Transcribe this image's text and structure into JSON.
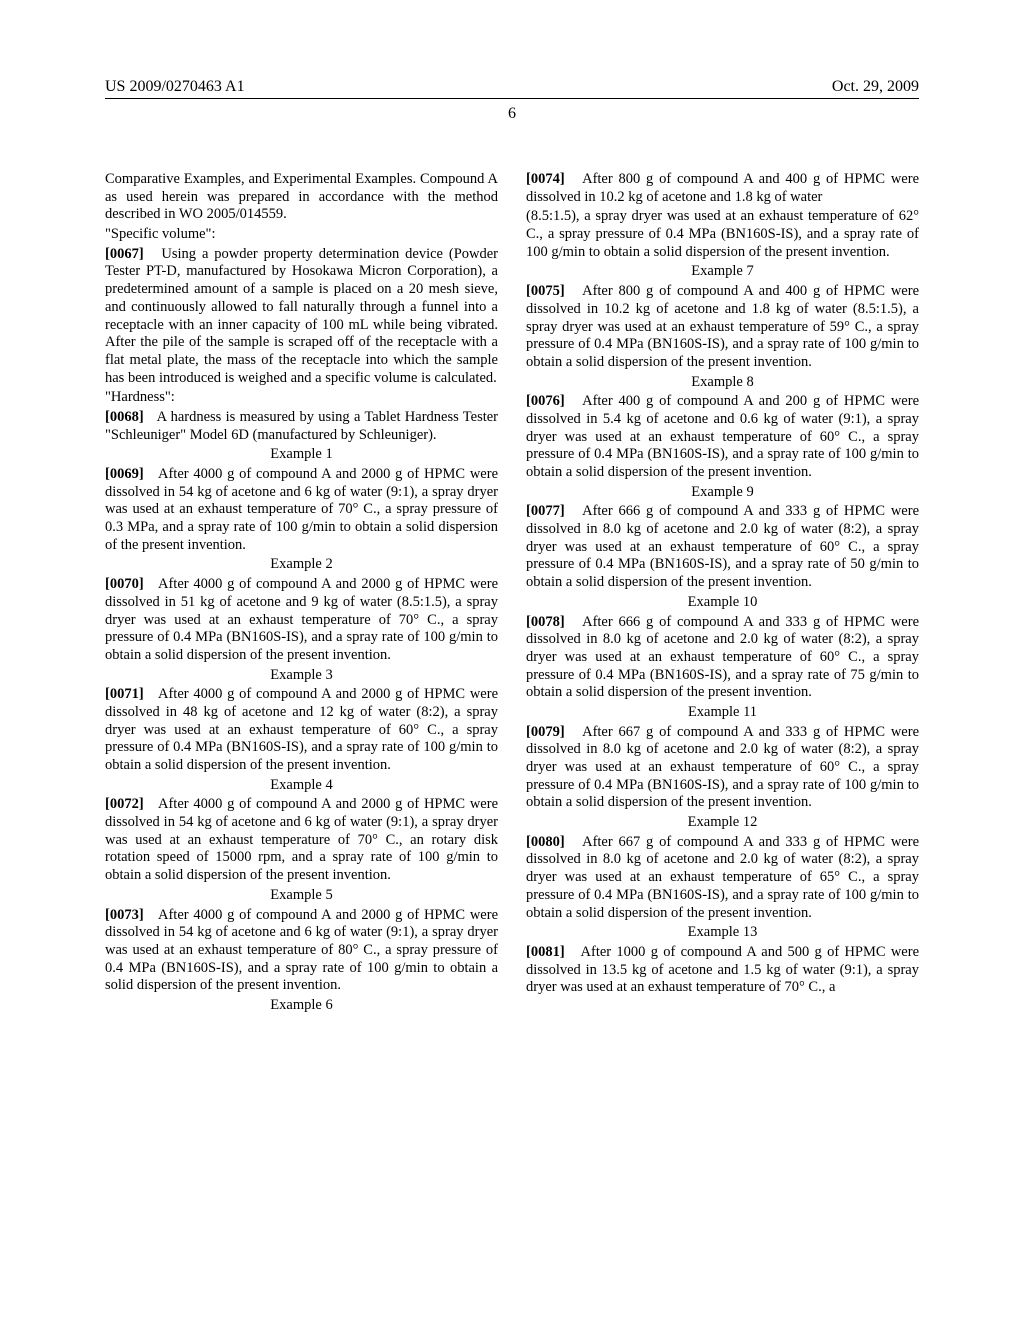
{
  "header": {
    "left": "US 2009/0270463 A1",
    "right": "Oct. 29, 2009"
  },
  "page_number": "6",
  "col1": {
    "intro1": "Comparative Examples, and Experimental Examples. Compound A as used herein was prepared in accordance with the method described in WO 2005/014559.",
    "specific_volume_label": "\"Specific volume\":",
    "p0067_num": "[0067]",
    "p0067": "Using a powder property determination device (Powder Tester PT-D, manufactured by Hosokawa Micron Corporation), a predetermined amount of a sample is placed on a 20 mesh sieve, and continuously allowed to fall naturally through a funnel into a receptacle with an inner capacity of 100 mL while being vibrated. After the pile of the sample is scraped off of the receptacle with a flat metal plate, the mass of the receptacle into which the sample has been introduced is weighed and a specific volume is calculated.",
    "hardness_label": "\"Hardness\":",
    "p0068_num": "[0068]",
    "p0068": "A hardness is measured by using a Tablet Hardness Tester \"Schleuniger\" Model 6D (manufactured by Schleuniger).",
    "ex1_heading": "Example 1",
    "p0069_num": "[0069]",
    "p0069": "After 4000 g of compound A and 2000 g of HPMC were dissolved in 54 kg of acetone and 6 kg of water (9:1), a spray dryer was used at an exhaust temperature of 70° C., a spray pressure of 0.3 MPa, and a spray rate of 100 g/min to obtain a solid dispersion of the present invention.",
    "ex2_heading": "Example 2",
    "p0070_num": "[0070]",
    "p0070": "After 4000 g of compound A and 2000 g of HPMC were dissolved in 51 kg of acetone and 9 kg of water (8.5:1.5), a spray dryer was used at an exhaust temperature of 70° C., a spray pressure of 0.4 MPa (BN160S-IS), and a spray rate of 100 g/min to obtain a solid dispersion of the present invention.",
    "ex3_heading": "Example 3",
    "p0071_num": "[0071]",
    "p0071": "After 4000 g of compound A and 2000 g of HPMC were dissolved in 48 kg of acetone and 12 kg of water (8:2), a spray dryer was used at an exhaust temperature of 60° C., a spray pressure of 0.4 MPa (BN160S-IS), and a spray rate of 100 g/min to obtain a solid dispersion of the present invention.",
    "ex4_heading": "Example 4",
    "p0072_num": "[0072]",
    "p0072": "After 4000 g of compound A and 2000 g of HPMC were dissolved in 54 kg of acetone and 6 kg of water (9:1), a spray dryer was used at an exhaust temperature of 70° C., an rotary disk rotation speed of 15000 rpm, and a spray rate of 100 g/min to obtain a solid dispersion of the present invention.",
    "ex5_heading": "Example 5",
    "p0073_num": "[0073]",
    "p0073": "After 4000 g of compound A and 2000 g of HPMC were dissolved in 54 kg of acetone and 6 kg of water (9:1), a spray dryer was used at an exhaust temperature of 80° C., a spray pressure of 0.4 MPa (BN160S-IS), and a spray rate of 100 g/min to obtain a solid dispersion of the present invention.",
    "ex6_heading": "Example 6",
    "p0074_num": "[0074]",
    "p0074": "After 800 g of compound A and 400 g of HPMC were dissolved in 10.2 kg of acetone and 1.8 kg of water"
  },
  "col2": {
    "cont": "(8.5:1.5), a spray dryer was used at an exhaust temperature of 62° C., a spray pressure of 0.4 MPa (BN160S-IS), and a spray rate of 100 g/min to obtain a solid dispersion of the present invention.",
    "ex7_heading": "Example 7",
    "p0075_num": "[0075]",
    "p0075": "After 800 g of compound A and 400 g of HPMC were dissolved in 10.2 kg of acetone and 1.8 kg of water (8.5:1.5), a spray dryer was used at an exhaust temperature of 59° C., a spray pressure of 0.4 MPa (BN160S-IS), and a spray rate of 100 g/min to obtain a solid dispersion of the present invention.",
    "ex8_heading": "Example 8",
    "p0076_num": "[0076]",
    "p0076": "After 400 g of compound A and 200 g of HPMC were dissolved in 5.4 kg of acetone and 0.6 kg of water (9:1), a spray dryer was used at an exhaust temperature of 60° C., a spray pressure of 0.4 MPa (BN160S-IS), and a spray rate of 100 g/min to obtain a solid dispersion of the present invention.",
    "ex9_heading": "Example 9",
    "p0077_num": "[0077]",
    "p0077": "After 666 g of compound A and 333 g of HPMC were dissolved in 8.0 kg of acetone and 2.0 kg of water (8:2), a spray dryer was used at an exhaust temperature of 60° C., a spray pressure of 0.4 MPa (BN160S-IS), and a spray rate of 50 g/min to obtain a solid dispersion of the present invention.",
    "ex10_heading": "Example 10",
    "p0078_num": "[0078]",
    "p0078": "After 666 g of compound A and 333 g of HPMC were dissolved in 8.0 kg of acetone and 2.0 kg of water (8:2), a spray dryer was used at an exhaust temperature of 60° C., a spray pressure of 0.4 MPa (BN160S-IS), and a spray rate of 75 g/min to obtain a solid dispersion of the present invention.",
    "ex11_heading": "Example 11",
    "p0079_num": "[0079]",
    "p0079": "After 667 g of compound A and 333 g of HPMC were dissolved in 8.0 kg of acetone and 2.0 kg of water (8:2), a spray dryer was used at an exhaust temperature of 60° C., a spray pressure of 0.4 MPa (BN160S-IS), and a spray rate of 100 g/min to obtain a solid dispersion of the present invention.",
    "ex12_heading": "Example 12",
    "p0080_num": "[0080]",
    "p0080": "After 667 g of compound A and 333 g of HPMC were dissolved in 8.0 kg of acetone and 2.0 kg of water (8:2), a spray dryer was used at an exhaust temperature of 65° C., a spray pressure of 0.4 MPa (BN160S-IS), and a spray rate of 100 g/min to obtain a solid dispersion of the present invention.",
    "ex13_heading": "Example 13",
    "p0081_num": "[0081]",
    "p0081": "After 1000 g of compound A and 500 g of HPMC were dissolved in 13.5 kg of acetone and 1.5 kg of water (9:1), a spray dryer was used at an exhaust temperature of 70° C., a"
  }
}
